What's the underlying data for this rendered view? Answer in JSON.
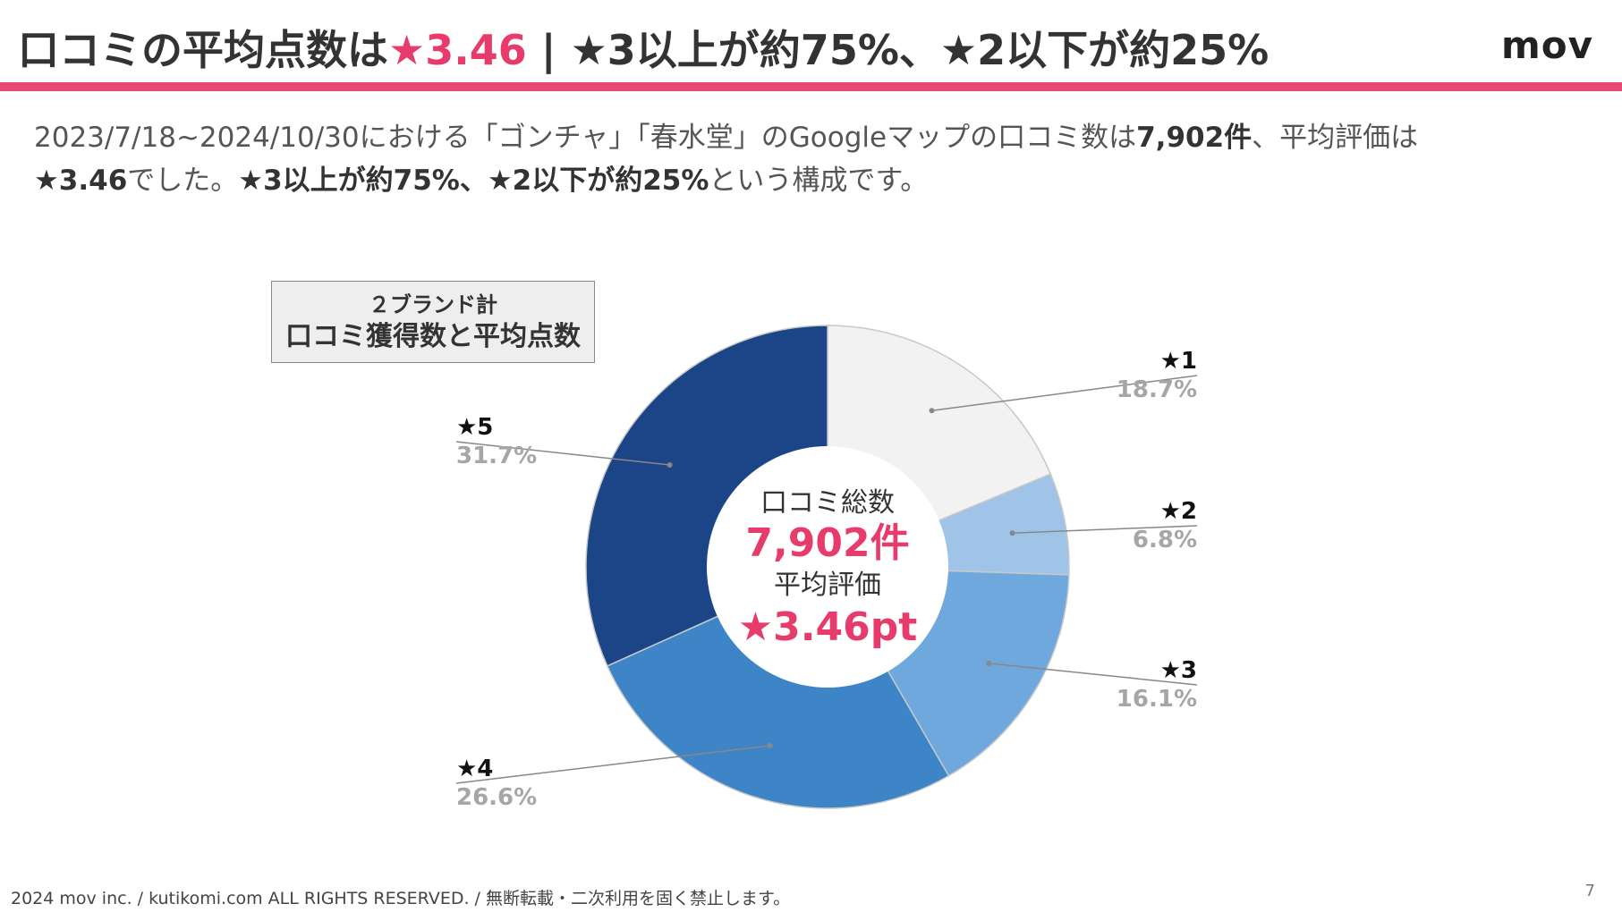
{
  "header": {
    "title_main": "口コミの平均点数は",
    "title_accent": "★3.46",
    "title_rest": " | ★3以上が約75%、★2以下が約25%",
    "logo": "mov"
  },
  "description": {
    "part1": "2023/7/18~2024/10/30における「ゴンチャ」「春水堂」のGoogleマップの口コミ数は",
    "bold1": "7,902件",
    "part2": "、平均評価は",
    "bold2": "★3.46",
    "part3": "でした。",
    "bold3": "★3以上が約75%、★2以下が約25%",
    "part4": "という構成です。"
  },
  "legend_box": {
    "line1": "２ブランド計",
    "line2": "口コミ獲得数と平均点数"
  },
  "chart_data": {
    "type": "pie",
    "style": "donut",
    "categories": [
      "★1",
      "★2",
      "★3",
      "★4",
      "★5"
    ],
    "values": [
      18.7,
      6.8,
      16.1,
      26.6,
      31.7
    ],
    "value_labels": [
      "18.7%",
      "6.8%",
      "16.1%",
      "26.6%",
      "31.7%"
    ],
    "colors": [
      "#f2f2f2",
      "#a0c4e8",
      "#6fa8dc",
      "#3d85c6",
      "#1c4587"
    ],
    "center": {
      "label1": "口コミ総数",
      "value1": "7,902件",
      "label2": "平均評価",
      "value2": "★3.46pt"
    }
  },
  "colors": {
    "accent": "#e73c6b",
    "rule": "#e94a73"
  },
  "footer": {
    "copyright": "2024 mov inc. / kutikomi.com ALL RIGHTS RESERVED. / 無断転載・二次利用を固く禁止します。",
    "page_number": "7"
  }
}
